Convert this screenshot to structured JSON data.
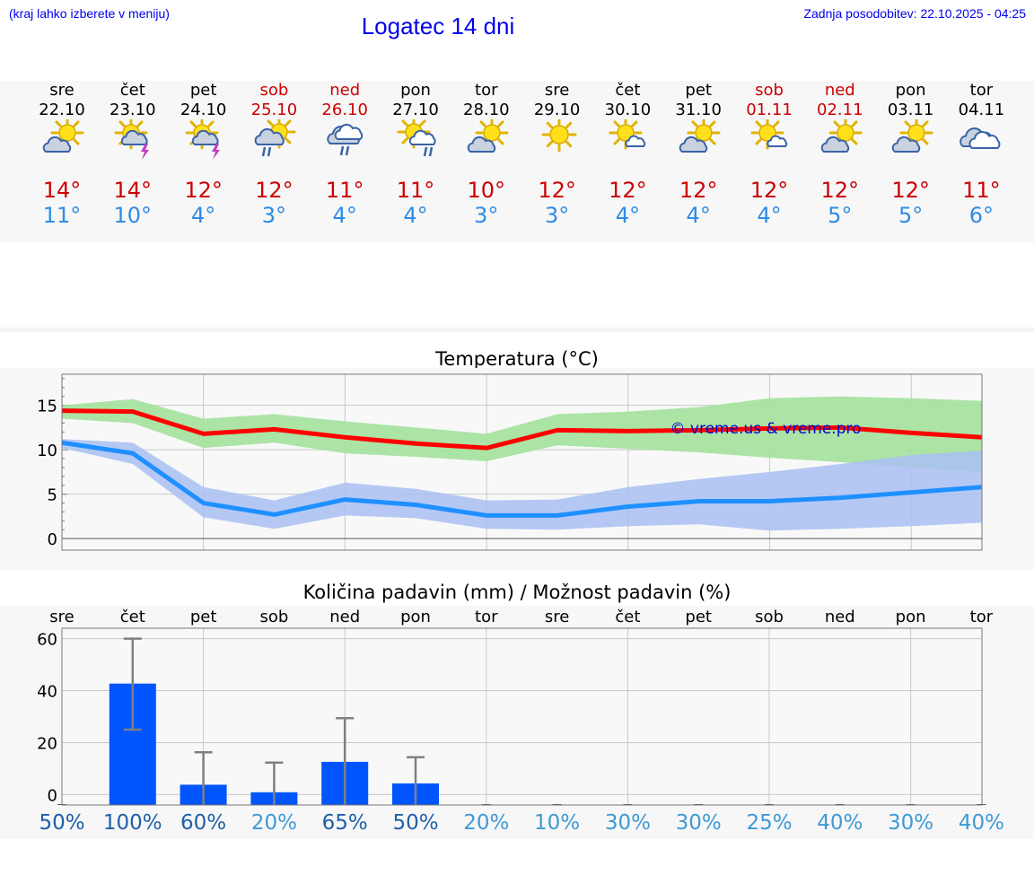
{
  "header": {
    "hint": "(kraj lahko izberete v meniju)",
    "title": "Logatec 14 dni",
    "updated": "Zadnja posodobitev: 22.10.2025 - 04:25"
  },
  "colors": {
    "link": "#0000ee",
    "max_temp": "#cc0000",
    "min_temp": "#2d8ce6",
    "weekend": "#cc0000",
    "bar": "#0055ff",
    "max_band": "#a6e3a0",
    "min_band": "#a9bff2",
    "max_line": "#ff0000",
    "min_line": "#1e90ff"
  },
  "days": [
    {
      "name": "sre",
      "date": "22.10",
      "icon": "partly-cloudy-icon",
      "weekend": false,
      "tmax": "14°",
      "tmin": "11°"
    },
    {
      "name": "čet",
      "date": "23.10",
      "icon": "sun-thunderstorm-icon",
      "weekend": false,
      "tmax": "14°",
      "tmin": "10°"
    },
    {
      "name": "pet",
      "date": "24.10",
      "icon": "sun-thunderstorm-icon",
      "weekend": false,
      "tmax": "12°",
      "tmin": "4°"
    },
    {
      "name": "sob",
      "date": "25.10",
      "icon": "sun-rain-icon",
      "weekend": true,
      "tmax": "12°",
      "tmin": "3°"
    },
    {
      "name": "ned",
      "date": "26.10",
      "icon": "cloudy-rain-icon",
      "weekend": true,
      "tmax": "11°",
      "tmin": "4°"
    },
    {
      "name": "pon",
      "date": "27.10",
      "icon": "sun-cloud-rain-icon",
      "weekend": false,
      "tmax": "11°",
      "tmin": "4°"
    },
    {
      "name": "tor",
      "date": "28.10",
      "icon": "partly-cloudy-icon",
      "weekend": false,
      "tmax": "10°",
      "tmin": "3°"
    },
    {
      "name": "sre",
      "date": "29.10",
      "icon": "sun-icon",
      "weekend": false,
      "tmax": "12°",
      "tmin": "3°"
    },
    {
      "name": "čet",
      "date": "30.10",
      "icon": "sun-small-cloud-icon",
      "weekend": false,
      "tmax": "12°",
      "tmin": "4°"
    },
    {
      "name": "pet",
      "date": "31.10",
      "icon": "partly-cloudy-icon",
      "weekend": false,
      "tmax": "12°",
      "tmin": "4°"
    },
    {
      "name": "sob",
      "date": "01.11",
      "icon": "sun-small-cloud-icon",
      "weekend": true,
      "tmax": "12°",
      "tmin": "4°"
    },
    {
      "name": "ned",
      "date": "02.11",
      "icon": "partly-cloudy-icon",
      "weekend": true,
      "tmax": "12°",
      "tmin": "5°"
    },
    {
      "name": "pon",
      "date": "03.11",
      "icon": "partly-cloudy-icon",
      "weekend": false,
      "tmax": "12°",
      "tmin": "5°"
    },
    {
      "name": "tor",
      "date": "04.11",
      "icon": "cloudy-icon",
      "weekend": false,
      "tmax": "11°",
      "tmin": "6°"
    }
  ],
  "chart_data": [
    {
      "type": "line",
      "title": "Temperatura (°C)",
      "watermark": "© vreme.us & vreme.pro",
      "ylim": [
        -1.3,
        18.5
      ],
      "yticks": [
        "0",
        "5",
        "10",
        "15"
      ],
      "xlabel": "",
      "ylabel": "",
      "grid": true,
      "x": [
        0,
        1,
        2,
        3,
        4,
        5,
        6,
        7,
        8,
        9,
        10,
        11,
        12,
        13
      ],
      "series": [
        {
          "name": "max",
          "values": [
            14.4,
            14.3,
            11.8,
            12.3,
            11.4,
            10.7,
            10.2,
            12.2,
            12.1,
            12.2,
            12.4,
            12.5,
            11.9,
            11.4
          ],
          "band_upper": [
            15.0,
            15.7,
            13.5,
            14.0,
            13.2,
            12.5,
            11.8,
            14.0,
            14.3,
            14.8,
            15.8,
            16.0,
            15.8,
            15.5
          ],
          "band_lower": [
            13.5,
            13.0,
            10.2,
            10.8,
            9.6,
            9.2,
            8.7,
            10.5,
            10.1,
            9.7,
            9.1,
            8.6,
            8.0,
            7.5
          ]
        },
        {
          "name": "min",
          "values": [
            10.8,
            9.6,
            4.0,
            2.7,
            4.4,
            3.8,
            2.6,
            2.6,
            3.6,
            4.2,
            4.2,
            4.6,
            5.2,
            5.8
          ],
          "band_upper": [
            11.2,
            10.8,
            5.8,
            4.3,
            6.3,
            5.6,
            4.3,
            4.4,
            5.8,
            6.7,
            7.5,
            8.4,
            9.4,
            9.9
          ],
          "band_lower": [
            10.2,
            8.4,
            2.4,
            1.1,
            2.6,
            2.3,
            1.1,
            1.0,
            1.4,
            1.6,
            0.9,
            1.1,
            1.4,
            1.8
          ]
        }
      ]
    },
    {
      "type": "bar",
      "title": "Količina padavin (mm) / Možnost padavin (%)",
      "categories": [
        "sre",
        "čet",
        "pet",
        "sob",
        "ned",
        "pon",
        "tor",
        "sre",
        "čet",
        "pet",
        "sob",
        "ned",
        "pon",
        "tor"
      ],
      "values": [
        0,
        42.7,
        3.8,
        0.9,
        12.6,
        4.3,
        0,
        0,
        0,
        0,
        0,
        0,
        0,
        0
      ],
      "error_high": [
        0,
        60,
        16.3,
        12.3,
        29.4,
        14.4,
        0,
        0,
        0,
        0,
        0,
        0,
        0,
        0
      ],
      "error_low": [
        0,
        25,
        0,
        0,
        0,
        0,
        0,
        0,
        0,
        0,
        0,
        0,
        0,
        0
      ],
      "chance": [
        "50%",
        "100%",
        "60%",
        "20%",
        "65%",
        "50%",
        "20%",
        "10%",
        "30%",
        "30%",
        "25%",
        "40%",
        "30%",
        "40%"
      ],
      "yticks": [
        "0",
        "20",
        "40",
        "60"
      ],
      "ylim": [
        -4,
        64
      ],
      "xlabel": "",
      "ylabel": "",
      "grid": true
    }
  ]
}
